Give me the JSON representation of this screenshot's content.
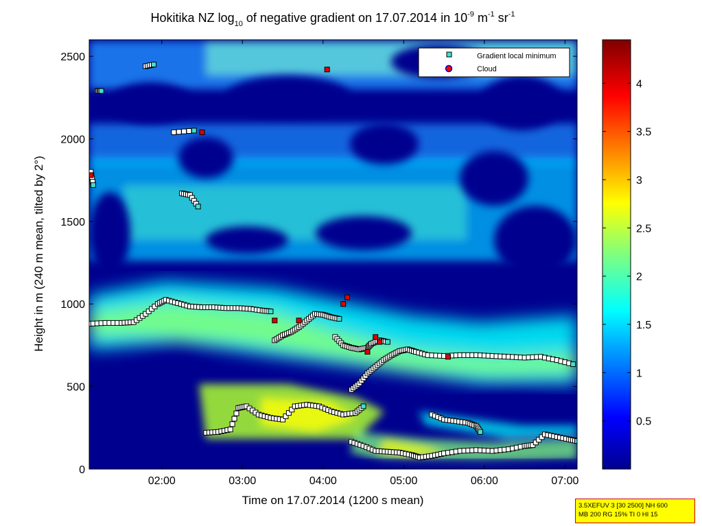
{
  "chart_data": {
    "type": "heatmap",
    "title_parts": {
      "a": "Hokitika NZ log",
      "a_sub": "10",
      "b": " of negative gradient on 17.07.2014 in 10",
      "b_sup": "-9",
      "c": " m",
      "c_sup": "-1",
      "d": " sr",
      "d_sup": "-1"
    },
    "xlabel": "Time on 17.07.2014 (1200 s mean)",
    "ylabel": "Height in m (240 m mean, tilted by 2°)",
    "x_ticks": [
      "02:00",
      "03:00",
      "04:00",
      "05:00",
      "06:00",
      "07:00"
    ],
    "x_tick_hours": [
      2,
      3,
      4,
      5,
      6,
      7
    ],
    "xlim_hours": [
      1.1,
      7.15
    ],
    "y_ticks": [
      0,
      500,
      1000,
      1500,
      2000,
      2500
    ],
    "ylim": [
      0,
      2600
    ],
    "colorbar": {
      "ticks": [
        "0.5",
        "1",
        "1.5",
        "2",
        "2.5",
        "3",
        "3.5",
        "4"
      ],
      "tick_values": [
        0.5,
        1,
        1.5,
        2,
        2.5,
        3,
        3.5,
        4
      ],
      "range": [
        0,
        4.45
      ],
      "colormap": "jet"
    },
    "legend": {
      "position": "top-right",
      "entries": [
        {
          "label": "Gradient local minimum",
          "marker": "square",
          "color": "#40e0d0"
        },
        {
          "label": "Cloud",
          "marker": "circle",
          "color": "#ff0000"
        }
      ]
    },
    "series": [
      {
        "name": "Gradient local minimum",
        "traces": [
          {
            "x": [
              1.1,
              1.3,
              1.5,
              1.65,
              1.8,
              1.95,
              2.05,
              2.2,
              2.35,
              2.5,
              2.65,
              2.8,
              2.95,
              3.1,
              3.25,
              3.35
            ],
            "y": [
              880,
              885,
              885,
              890,
              940,
              1000,
              1025,
              1005,
              985,
              980,
              980,
              975,
              975,
              970,
              960,
              955
            ]
          },
          {
            "x": [
              3.4,
              3.5,
              3.6,
              3.7,
              3.8,
              3.9,
              4.0,
              4.1,
              4.2
            ],
            "y": [
              780,
              810,
              830,
              860,
              900,
              940,
              935,
              920,
              910
            ]
          },
          {
            "x": [
              4.15,
              4.25,
              4.35,
              4.45,
              4.55,
              4.6,
              4.7,
              4.8
            ],
            "y": [
              800,
              750,
              735,
              725,
              735,
              760,
              780,
              770
            ]
          },
          {
            "x": [
              4.35,
              4.45,
              4.55,
              4.65,
              4.75,
              4.85,
              4.95,
              5.05,
              5.15,
              5.3,
              5.5,
              5.7,
              5.9,
              6.1,
              6.3,
              6.5,
              6.7,
              6.9,
              7.1
            ],
            "y": [
              480,
              520,
              580,
              620,
              660,
              690,
              715,
              725,
              710,
              690,
              685,
              690,
              690,
              685,
              680,
              675,
              680,
              660,
              635
            ]
          },
          {
            "x": [
              2.55,
              2.7,
              2.85,
              2.95,
              3.05,
              3.2,
              3.35,
              3.5,
              3.65,
              3.8,
              3.95,
              4.1,
              4.25,
              4.4,
              4.5
            ],
            "y": [
              220,
              225,
              240,
              370,
              380,
              330,
              310,
              300,
              380,
              390,
              380,
              350,
              330,
              340,
              380
            ]
          },
          {
            "x": [
              4.35,
              4.5,
              4.65,
              4.8,
              4.95,
              5.1,
              5.2,
              5.35,
              5.5,
              5.7,
              5.9,
              6.1,
              6.3,
              6.5,
              6.6,
              6.75,
              6.9,
              7.05,
              7.15
            ],
            "y": [
              165,
              140,
              110,
              105,
              100,
              85,
              70,
              80,
              95,
              110,
              115,
              110,
              120,
              140,
              145,
              210,
              195,
              180,
              170
            ]
          },
          {
            "x": [
              5.35,
              5.5,
              5.65,
              5.8,
              5.9,
              5.95
            ],
            "y": [
              330,
              300,
              290,
              280,
              260,
              225
            ]
          },
          {
            "x": [
              1.12,
              1.15
            ],
            "y": [
              1800,
              1720
            ]
          },
          {
            "x": [
              1.2,
              1.25
            ],
            "y": [
              2290,
              2290
            ]
          },
          {
            "x": [
              1.8,
              1.9
            ],
            "y": [
              2440,
              2450
            ]
          },
          {
            "x": [
              2.15,
              2.4
            ],
            "y": [
              2040,
              2050
            ]
          },
          {
            "x": [
              2.25,
              2.35,
              2.45
            ],
            "y": [
              1670,
              1660,
              1590
            ]
          }
        ]
      },
      {
        "name": "Cloud",
        "points": [
          {
            "x": 1.12,
            "y": 1780
          },
          {
            "x": 2.5,
            "y": 2040
          },
          {
            "x": 4.05,
            "y": 2420
          },
          {
            "x": 3.4,
            "y": 900
          },
          {
            "x": 3.7,
            "y": 900
          },
          {
            "x": 4.25,
            "y": 1000
          },
          {
            "x": 4.3,
            "y": 1040
          },
          {
            "x": 4.55,
            "y": 710
          },
          {
            "x": 4.65,
            "y": 800
          },
          {
            "x": 4.7,
            "y": 770
          },
          {
            "x": 5.55,
            "y": 680
          }
        ]
      }
    ]
  },
  "info_box": {
    "line1": "3.5XEFUV 3 [30 2500] NH 600",
    "line2": "MB 200 RG 15% TI 0 HI 15"
  }
}
